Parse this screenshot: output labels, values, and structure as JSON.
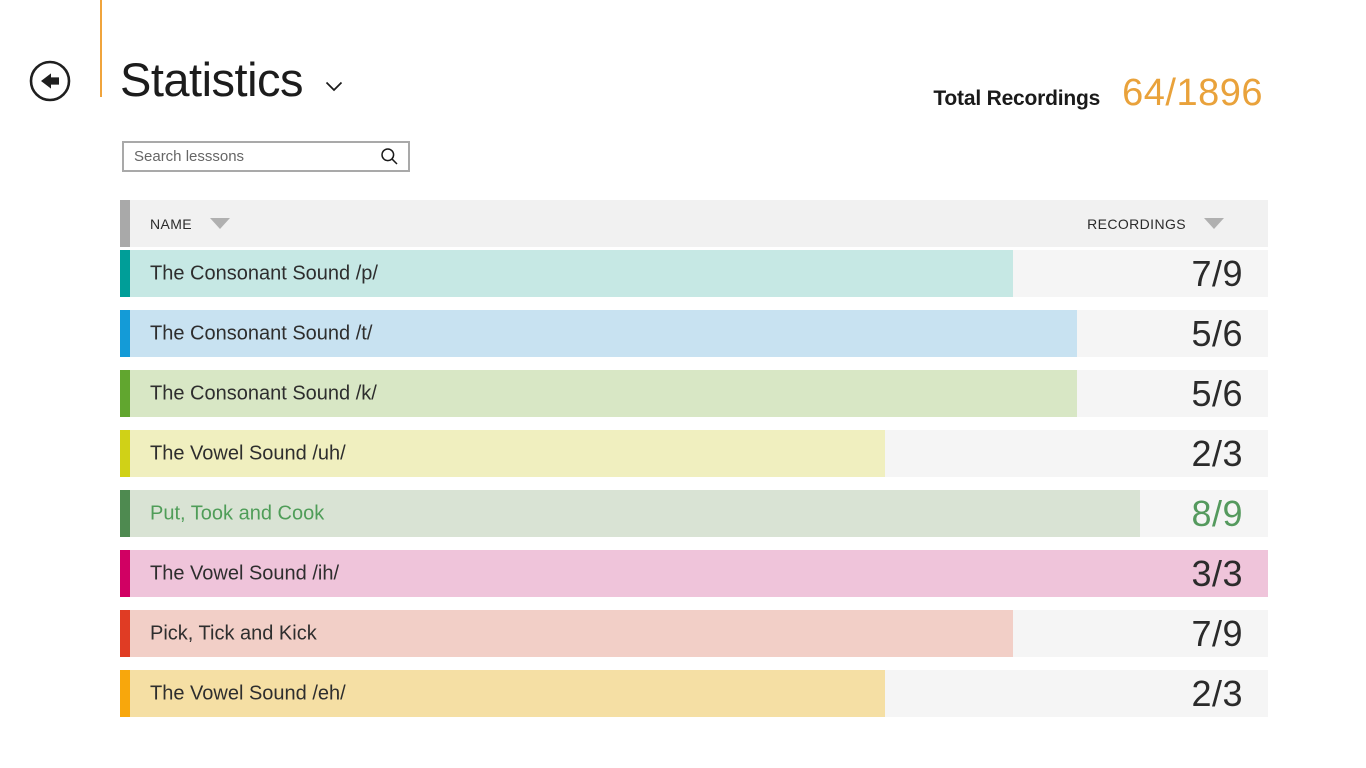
{
  "header": {
    "title": "Statistics",
    "total_label": "Total Recordings",
    "total_value": "64/1896",
    "accent_orange": "#f0a43c"
  },
  "search": {
    "placeholder": "Search lesssons"
  },
  "table": {
    "header_accent": "#a9a9a9",
    "columns": [
      {
        "label": "NAME"
      },
      {
        "label": "RECORDINGS"
      }
    ],
    "rows": [
      {
        "name": "The Consonant Sound /p/",
        "value": "7/9",
        "done": 7,
        "total": 9,
        "accent": "#009e98",
        "fill": "#c6e8e4"
      },
      {
        "name": "The Consonant Sound /t/",
        "value": "5/6",
        "done": 5,
        "total": 6,
        "accent": "#149bd7",
        "fill": "#c8e2f1"
      },
      {
        "name": "The Consonant Sound /k/",
        "value": "5/6",
        "done": 5,
        "total": 6,
        "accent": "#61a62f",
        "fill": "#d8e7c5"
      },
      {
        "name": "The Vowel Sound /uh/",
        "value": "2/3",
        "done": 2,
        "total": 3,
        "accent": "#d0d117",
        "fill": "#f0efbf"
      },
      {
        "name": "Put, Took and Cook",
        "value": "8/9",
        "done": 8,
        "total": 9,
        "accent": "#4e8a50",
        "fill": "#d9e3d4",
        "text_color": "#4f9d58",
        "value_color": "#559a5e"
      },
      {
        "name": "The Vowel Sound /ih/",
        "value": "3/3",
        "done": 3,
        "total": 3,
        "accent": "#d10063",
        "fill": "#efc4da"
      },
      {
        "name": "Pick, Tick and Kick",
        "value": "7/9",
        "done": 7,
        "total": 9,
        "accent": "#e03c24",
        "fill": "#f2cfc7"
      },
      {
        "name": "The Vowel Sound /eh/",
        "value": "2/3",
        "done": 2,
        "total": 3,
        "accent": "#f8a70c",
        "fill": "#f5dfa4"
      }
    ]
  }
}
